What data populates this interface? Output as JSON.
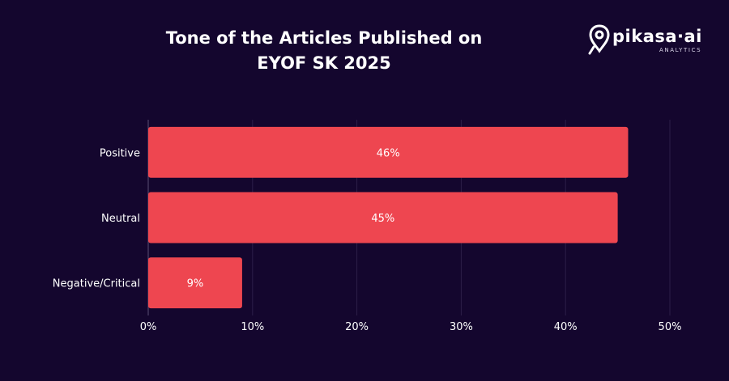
{
  "brand": {
    "name": "pikasa·ai",
    "tagline": "ANALYTICS"
  },
  "colors": {
    "background": "#14062e",
    "bar": "#ee4650",
    "text": "#ffffff",
    "grid": "#2c1f48"
  },
  "chart_data": {
    "type": "bar",
    "orientation": "horizontal",
    "title_line1": "Tone of the Articles Published on",
    "title_line2": "EYOF SK 2025",
    "xlabel": "",
    "ylabel": "",
    "categories": [
      "Positive",
      "Neutral",
      "Negative/Critical"
    ],
    "values": [
      46,
      45,
      9
    ],
    "data_labels": [
      "46%",
      "45%",
      "9%"
    ],
    "xlim": [
      0,
      50
    ],
    "ticks": [
      0,
      10,
      20,
      30,
      40,
      50
    ],
    "tick_labels": [
      "0%",
      "10%",
      "20%",
      "30%",
      "40%",
      "50%"
    ],
    "grid": true,
    "legend": "none"
  }
}
